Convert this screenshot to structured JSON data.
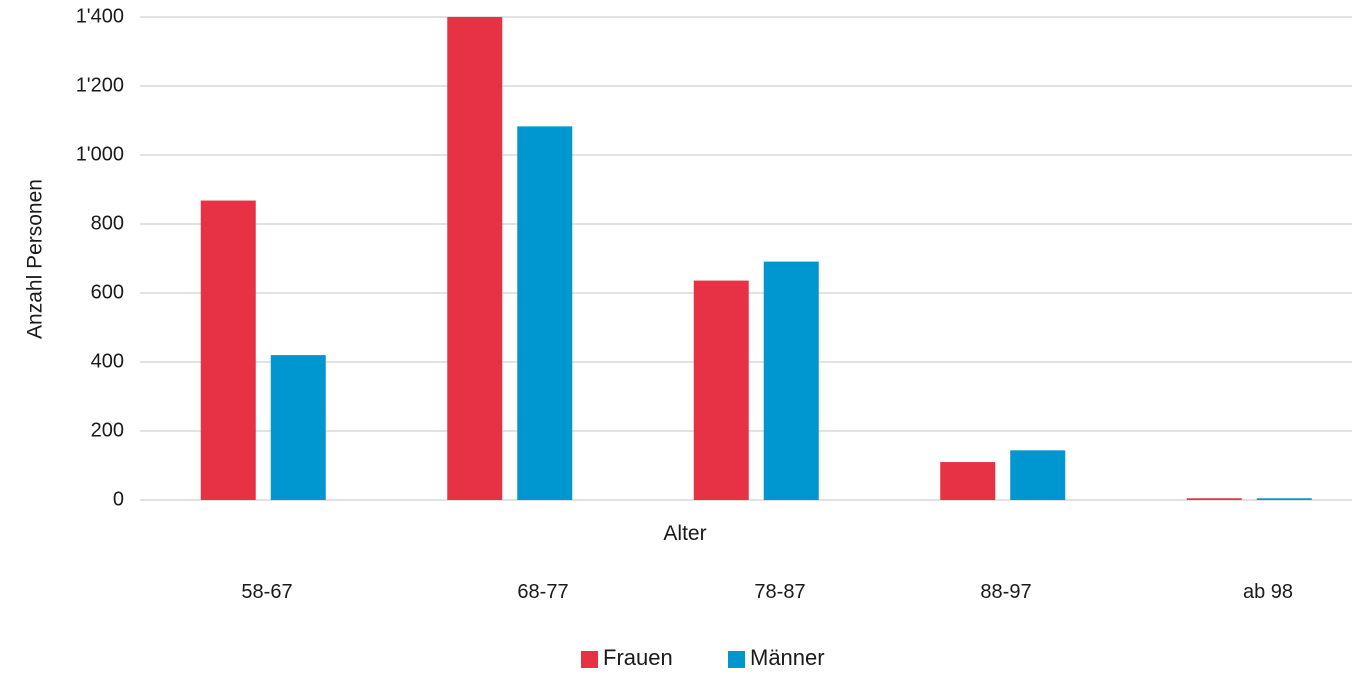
{
  "chart_data": {
    "type": "bar",
    "title": "",
    "xlabel": "Alter",
    "ylabel": "Anzahl Personen",
    "categories": [
      "58-67",
      "68-77",
      "78-87",
      "88-97",
      "ab 98"
    ],
    "series": [
      {
        "name": "Frauen",
        "color": "#e63244",
        "values": [
          868,
          1400,
          636,
          110,
          5
        ]
      },
      {
        "name": "Männer",
        "color": "#0097d1",
        "values": [
          420,
          1083,
          691,
          144,
          5
        ]
      }
    ],
    "ylim": [
      0,
      1400
    ],
    "yticks": [
      0,
      200,
      400,
      600,
      800,
      1000,
      1200,
      1400
    ],
    "ytick_labels": [
      "0",
      "200",
      "400",
      "600",
      "800",
      "1'000",
      "1'200",
      "1'400"
    ],
    "grid": true,
    "legend_position": "bottom-center"
  }
}
